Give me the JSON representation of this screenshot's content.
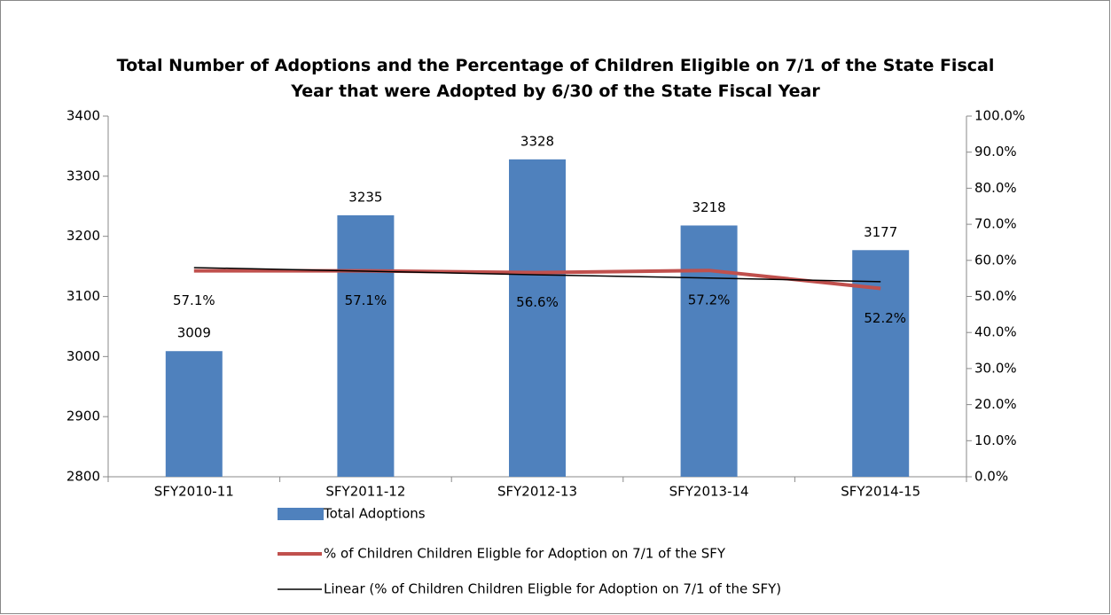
{
  "chart_data": {
    "type": "bar_line",
    "title": "Total Number of Adoptions and the Percentage of Children Eligible on 7/1 of the State Fiscal Year that were Adopted by 6/30 of the State Fiscal Year",
    "categories": [
      "SFY2010-11",
      "SFY2011-12",
      "SFY2012-13",
      "SFY2013-14",
      "SFY2014-15"
    ],
    "series": [
      {
        "name": "Total Adoptions",
        "type": "bar",
        "color": "#4f81bd",
        "values": [
          3009,
          3235,
          3328,
          3218,
          3177
        ]
      },
      {
        "name": "% of Children Children Eligble for Adoption on 7/1 of the SFY",
        "type": "line",
        "axis": "y2",
        "color": "#c0504d",
        "values": [
          57.1,
          57.1,
          56.6,
          57.2,
          52.2
        ],
        "value_labels": [
          "57.1%",
          "57.1%",
          "56.6%",
          "57.2%",
          "52.2%"
        ]
      },
      {
        "name": "Linear (% of Children Children Eligble for Adoption on 7/1 of the SFY)",
        "type": "line",
        "axis": "y2",
        "color": "#000000",
        "values": [
          58.0,
          57.0,
          56.0,
          55.1,
          54.1
        ]
      }
    ],
    "ylim": [
      2800,
      3400
    ],
    "yticks": [
      2800,
      2900,
      3000,
      3100,
      3200,
      3300,
      3400
    ],
    "y2lim": [
      0,
      100
    ],
    "y2ticks": [
      {
        "value": 0,
        "label": "0.0%"
      },
      {
        "value": 10,
        "label": "10.0%"
      },
      {
        "value": 20,
        "label": "20.0%"
      },
      {
        "value": 30,
        "label": "30.0%"
      },
      {
        "value": 40,
        "label": "40.0%"
      },
      {
        "value": 50,
        "label": "50.0%"
      },
      {
        "value": 60,
        "label": "60.0%"
      },
      {
        "value": 70,
        "label": "70.0%"
      },
      {
        "value": 80,
        "label": "80.0%"
      },
      {
        "value": 90,
        "label": "90.0%"
      },
      {
        "value": 100,
        "label": "100.0%"
      }
    ],
    "grid": false,
    "legend": "bottom"
  }
}
